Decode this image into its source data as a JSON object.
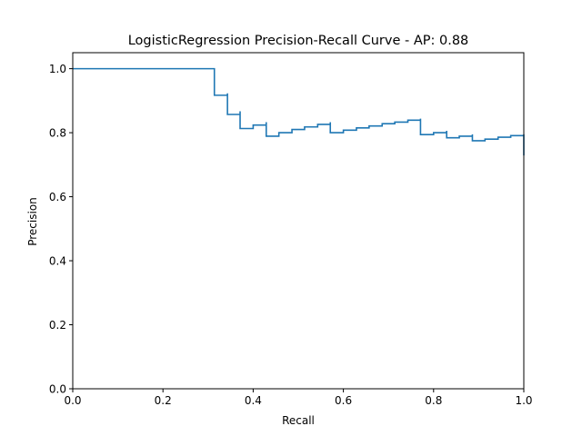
{
  "chart_data": {
    "type": "line",
    "title": "LogisticRegression Precision-Recall Curve - AP: 0.88",
    "xlabel": "Recall",
    "ylabel": "Precision",
    "xlim": [
      0.0,
      1.0
    ],
    "ylim": [
      0.0,
      1.05
    ],
    "grid": false,
    "drawstyle": "steps-post",
    "line_color": "#1f77b4",
    "xticks": [
      0.0,
      0.2,
      0.4,
      0.6,
      0.8,
      1.0
    ],
    "xtick_labels": [
      "0.0",
      "0.2",
      "0.4",
      "0.6",
      "0.8",
      "1.0"
    ],
    "yticks": [
      0.0,
      0.2,
      0.4,
      0.6,
      0.8,
      1.0
    ],
    "ytick_labels": [
      "0.0",
      "0.2",
      "0.4",
      "0.6",
      "0.8",
      "1.0"
    ],
    "series": [
      {
        "recall": [
          0.0,
          0.314,
          0.314,
          0.343,
          0.343,
          0.371,
          0.371,
          0.4,
          0.429,
          0.429,
          0.457,
          0.486,
          0.514,
          0.543,
          0.571,
          0.571,
          0.6,
          0.629,
          0.657,
          0.686,
          0.714,
          0.743,
          0.771,
          0.771,
          0.8,
          0.829,
          0.829,
          0.857,
          0.886,
          0.886,
          0.914,
          0.943,
          0.971,
          1.0,
          1.0
        ],
        "precision": [
          1.0,
          1.0,
          0.917,
          0.923,
          0.857,
          0.867,
          0.813,
          0.824,
          0.833,
          0.789,
          0.8,
          0.81,
          0.818,
          0.826,
          0.833,
          0.8,
          0.808,
          0.815,
          0.821,
          0.828,
          0.833,
          0.839,
          0.844,
          0.794,
          0.8,
          0.806,
          0.784,
          0.789,
          0.795,
          0.775,
          0.78,
          0.786,
          0.791,
          0.795,
          0.729
        ]
      }
    ]
  }
}
